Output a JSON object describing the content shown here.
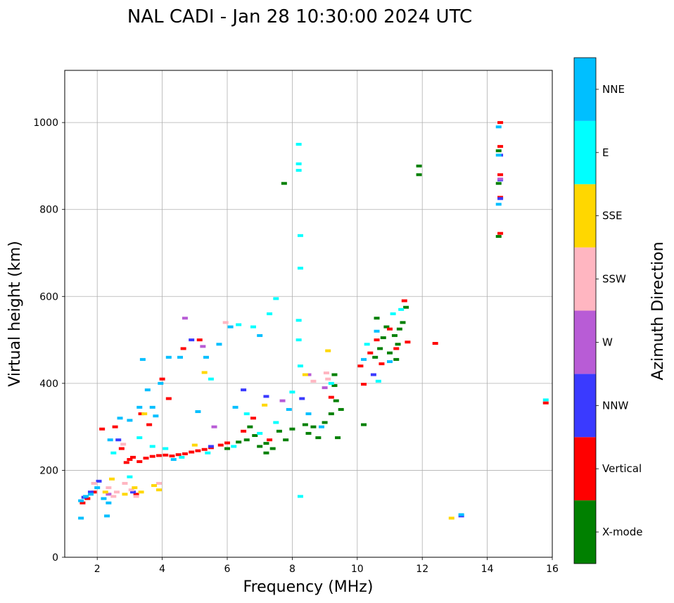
{
  "chart_data": {
    "type": "scatter",
    "title": "NAL CADI - Jan 28 10:30:00 2024 UTC",
    "xlabel": "Frequency (MHz)",
    "ylabel": "Virtual height (km)",
    "xlim": [
      1,
      16
    ],
    "ylim": [
      0,
      1120
    ],
    "xticks": [
      2,
      4,
      6,
      8,
      10,
      12,
      14,
      16
    ],
    "yticks": [
      0,
      200,
      400,
      600,
      800,
      1000
    ],
    "grid": true,
    "colorbar": {
      "label": "Azimuth Direction",
      "categories": [
        {
          "name": "X-mode",
          "color": "#008000"
        },
        {
          "name": "Vertical",
          "color": "#ff0000"
        },
        {
          "name": "NNW",
          "color": "#3a3aff"
        },
        {
          "name": "W",
          "color": "#b85cd6"
        },
        {
          "name": "SSW",
          "color": "#ffb6c1"
        },
        {
          "name": "SSE",
          "color": "#ffd700"
        },
        {
          "name": "E",
          "color": "#00ffff"
        },
        {
          "name": "NNE",
          "color": "#00bfff"
        }
      ]
    },
    "series": [
      {
        "name": "X-mode",
        "points": [
          [
            6.35,
            265
          ],
          [
            6.6,
            270
          ],
          [
            6.85,
            280
          ],
          [
            7.0,
            255
          ],
          [
            7.2,
            262
          ],
          [
            7.4,
            250
          ],
          [
            7.6,
            290
          ],
          [
            7.8,
            270
          ],
          [
            8.0,
            295
          ],
          [
            8.4,
            305
          ],
          [
            8.5,
            285
          ],
          [
            8.65,
            300
          ],
          [
            8.8,
            275
          ],
          [
            9.0,
            310
          ],
          [
            9.2,
            330
          ],
          [
            9.35,
            360
          ],
          [
            9.5,
            340
          ],
          [
            9.3,
            395
          ],
          [
            9.3,
            420
          ],
          [
            10.55,
            460
          ],
          [
            10.7,
            480
          ],
          [
            10.8,
            505
          ],
          [
            10.9,
            530
          ],
          [
            11.0,
            470
          ],
          [
            11.15,
            510
          ],
          [
            11.25,
            490
          ],
          [
            11.4,
            540
          ],
          [
            11.2,
            455
          ],
          [
            10.6,
            550
          ],
          [
            11.5,
            575
          ],
          [
            11.3,
            525
          ],
          [
            9.4,
            275
          ],
          [
            10.2,
            305
          ],
          [
            11.9,
            900
          ],
          [
            11.9,
            880
          ],
          [
            14.35,
            738
          ],
          [
            14.35,
            935
          ],
          [
            14.35,
            860
          ],
          [
            7.75,
            860
          ],
          [
            6.0,
            250
          ],
          [
            6.7,
            300
          ],
          [
            7.2,
            240
          ]
        ]
      },
      {
        "name": "Vertical",
        "points": [
          [
            2.9,
            218
          ],
          [
            3.0,
            225
          ],
          [
            3.1,
            230
          ],
          [
            3.3,
            220
          ],
          [
            3.5,
            228
          ],
          [
            3.7,
            232
          ],
          [
            3.9,
            234
          ],
          [
            4.1,
            235
          ],
          [
            4.3,
            233
          ],
          [
            4.5,
            236
          ],
          [
            4.7,
            238
          ],
          [
            4.9,
            242
          ],
          [
            5.1,
            245
          ],
          [
            5.3,
            248
          ],
          [
            5.5,
            252
          ],
          [
            5.8,
            258
          ],
          [
            6.0,
            263
          ],
          [
            1.55,
            125
          ],
          [
            1.7,
            135
          ],
          [
            1.9,
            150
          ],
          [
            2.15,
            295
          ],
          [
            2.55,
            300
          ],
          [
            2.75,
            250
          ],
          [
            3.35,
            330
          ],
          [
            3.6,
            305
          ],
          [
            4.0,
            410
          ],
          [
            4.2,
            365
          ],
          [
            4.65,
            480
          ],
          [
            5.15,
            500
          ],
          [
            6.5,
            290
          ],
          [
            6.8,
            320
          ],
          [
            7.3,
            270
          ],
          [
            9.2,
            368
          ],
          [
            10.1,
            440
          ],
          [
            10.2,
            398
          ],
          [
            10.4,
            470
          ],
          [
            10.6,
            500
          ],
          [
            10.75,
            445
          ],
          [
            11.0,
            525
          ],
          [
            11.2,
            480
          ],
          [
            11.45,
            590
          ],
          [
            11.55,
            495
          ],
          [
            12.4,
            492
          ],
          [
            14.4,
            1000
          ],
          [
            14.4,
            945
          ],
          [
            14.4,
            880
          ],
          [
            14.4,
            828
          ],
          [
            14.4,
            745
          ],
          [
            15.8,
            355
          ],
          [
            3.2,
            145
          ]
        ]
      },
      {
        "name": "NNW",
        "points": [
          [
            1.6,
            138
          ],
          [
            1.8,
            150
          ],
          [
            2.05,
            175
          ],
          [
            2.65,
            270
          ],
          [
            5.5,
            255
          ],
          [
            6.5,
            385
          ],
          [
            7.2,
            370
          ],
          [
            8.3,
            365
          ],
          [
            10.5,
            420
          ],
          [
            14.4,
            825
          ],
          [
            14.4,
            868
          ],
          [
            14.4,
            925
          ],
          [
            13.2,
            95
          ],
          [
            3.1,
            150
          ],
          [
            4.9,
            500
          ]
        ]
      },
      {
        "name": "W",
        "points": [
          [
            4.7,
            550
          ],
          [
            5.25,
            485
          ],
          [
            7.7,
            360
          ],
          [
            8.5,
            420
          ],
          [
            2.35,
            145
          ],
          [
            5.6,
            300
          ],
          [
            14.4,
            870
          ],
          [
            9.0,
            390
          ]
        ]
      },
      {
        "name": "SSW",
        "points": [
          [
            2.35,
            160
          ],
          [
            2.5,
            140
          ],
          [
            2.6,
            150
          ],
          [
            2.85,
            170
          ],
          [
            3.05,
            155
          ],
          [
            3.2,
            140
          ],
          [
            5.95,
            540
          ],
          [
            8.65,
            405
          ],
          [
            9.1,
            410
          ],
          [
            9.05,
            424
          ],
          [
            2.8,
            260
          ],
          [
            3.9,
            170
          ],
          [
            1.9,
            170
          ]
        ]
      },
      {
        "name": "SSE",
        "points": [
          [
            2.25,
            150
          ],
          [
            2.45,
            180
          ],
          [
            2.85,
            145
          ],
          [
            3.15,
            160
          ],
          [
            3.35,
            150
          ],
          [
            3.75,
            165
          ],
          [
            3.9,
            155
          ],
          [
            5.3,
            425
          ],
          [
            8.4,
            420
          ],
          [
            9.1,
            475
          ],
          [
            12.9,
            90
          ],
          [
            5.0,
            258
          ],
          [
            7.15,
            350
          ],
          [
            3.45,
            330
          ]
        ]
      },
      {
        "name": "E",
        "points": [
          [
            2.5,
            240
          ],
          [
            3.3,
            275
          ],
          [
            3.7,
            255
          ],
          [
            4.1,
            250
          ],
          [
            4.6,
            230
          ],
          [
            5.4,
            240
          ],
          [
            6.2,
            255
          ],
          [
            6.6,
            330
          ],
          [
            7.0,
            285
          ],
          [
            7.5,
            310
          ],
          [
            8.0,
            380
          ],
          [
            8.25,
            440
          ],
          [
            8.2,
            500
          ],
          [
            8.2,
            545
          ],
          [
            8.25,
            665
          ],
          [
            8.25,
            740
          ],
          [
            8.2,
            890
          ],
          [
            8.2,
            905
          ],
          [
            8.2,
            950
          ],
          [
            8.25,
            140
          ],
          [
            10.3,
            490
          ],
          [
            10.65,
            405
          ],
          [
            11.1,
            560
          ],
          [
            11.35,
            570
          ],
          [
            7.5,
            595
          ],
          [
            6.35,
            535
          ],
          [
            6.8,
            530
          ],
          [
            7.3,
            560
          ],
          [
            15.8,
            362
          ],
          [
            9.2,
            400
          ],
          [
            3.0,
            185
          ],
          [
            5.5,
            410
          ]
        ]
      },
      {
        "name": "NNE",
        "points": [
          [
            1.5,
            130
          ],
          [
            1.65,
            140
          ],
          [
            1.8,
            145
          ],
          [
            2.0,
            160
          ],
          [
            2.2,
            135
          ],
          [
            2.35,
            125
          ],
          [
            2.3,
            95
          ],
          [
            2.4,
            270
          ],
          [
            2.7,
            320
          ],
          [
            3.0,
            315
          ],
          [
            3.3,
            345
          ],
          [
            3.55,
            385
          ],
          [
            3.7,
            345
          ],
          [
            3.8,
            325
          ],
          [
            3.95,
            400
          ],
          [
            4.2,
            460
          ],
          [
            5.1,
            335
          ],
          [
            5.35,
            460
          ],
          [
            5.75,
            490
          ],
          [
            6.1,
            530
          ],
          [
            6.25,
            345
          ],
          [
            7.0,
            510
          ],
          [
            7.9,
            340
          ],
          [
            8.5,
            330
          ],
          [
            8.9,
            300
          ],
          [
            10.2,
            455
          ],
          [
            10.6,
            520
          ],
          [
            11.0,
            450
          ],
          [
            14.35,
            990
          ],
          [
            14.35,
            812
          ],
          [
            14.35,
            925
          ],
          [
            13.2,
            98
          ],
          [
            3.4,
            455
          ],
          [
            4.55,
            460
          ],
          [
            4.35,
            225
          ],
          [
            1.5,
            90
          ]
        ]
      }
    ]
  }
}
